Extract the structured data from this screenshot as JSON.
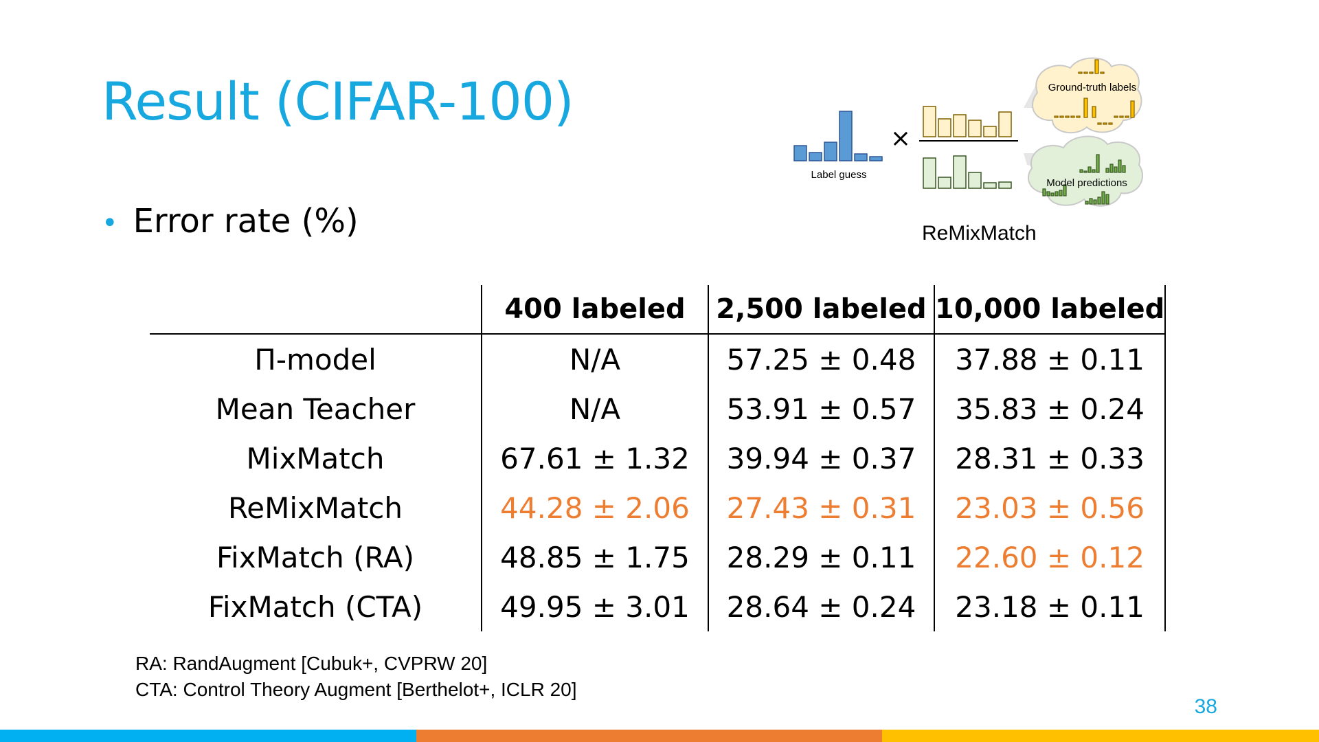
{
  "slide": {
    "title": "Result (CIFAR-100)",
    "bullet": "Error rate (%)",
    "page_number": "38"
  },
  "figure": {
    "caption": "ReMixMatch",
    "label_guess": "Label guess",
    "ground_truth_labels": "Ground-truth labels",
    "model_predictions": "Model predictions",
    "multiply_symbol": "×"
  },
  "table": {
    "headers": [
      "",
      "400 labeled",
      "2,500 labeled",
      "10,000 labeled"
    ],
    "rows": [
      {
        "method": "Π-model",
        "values": [
          "N/A",
          "57.25 ± 0.48",
          "37.88 ± 0.11"
        ],
        "best": [
          false,
          false,
          false
        ]
      },
      {
        "method": "Mean Teacher",
        "values": [
          "N/A",
          "53.91 ± 0.57",
          "35.83 ± 0.24"
        ],
        "best": [
          false,
          false,
          false
        ]
      },
      {
        "method": "MixMatch",
        "values": [
          "67.61 ± 1.32",
          "39.94 ± 0.37",
          "28.31 ± 0.33"
        ],
        "best": [
          false,
          false,
          false
        ]
      },
      {
        "method": "ReMixMatch",
        "values": [
          "44.28 ± 2.06",
          "27.43 ± 0.31",
          "23.03 ± 0.56"
        ],
        "best": [
          true,
          true,
          true
        ]
      },
      {
        "method": "FixMatch (RA)",
        "values": [
          "48.85 ± 1.75",
          "28.29 ± 0.11",
          "22.60 ± 0.12"
        ],
        "best": [
          false,
          false,
          true
        ]
      },
      {
        "method": "FixMatch (CTA)",
        "values": [
          "49.95 ± 3.01",
          "28.64 ± 0.24",
          "23.18 ± 0.11"
        ],
        "best": [
          false,
          false,
          false
        ]
      }
    ]
  },
  "footnotes": [
    "RA: RandAugment [Cubuk+, CVPRW 20]",
    "CTA: Control Theory Augment [Berthelot+, ICLR 20]"
  ],
  "colors": {
    "accent": "#18a8e0",
    "highlight": "#ed7d31",
    "bar_blue": "#00b0f0",
    "bar_orange": "#ed7d31",
    "bar_yellow": "#ffc000"
  }
}
